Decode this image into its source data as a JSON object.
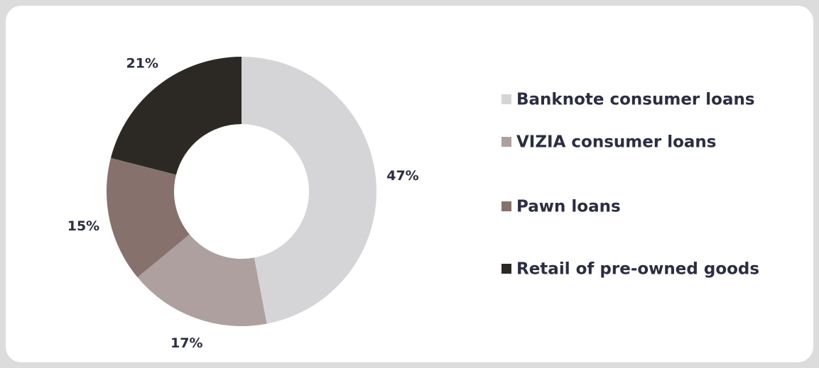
{
  "chart_data": {
    "type": "donut",
    "categories": [
      "Banknote consumer loans",
      "VIZIA consumer loans",
      "Pawn loans",
      "Retail of pre-owned goods"
    ],
    "values": [
      47,
      17,
      15,
      21
    ],
    "value_labels": [
      "47%",
      "17%",
      "15%",
      "21%"
    ],
    "colors": [
      "#d5d4d6",
      "#ada09f",
      "#86716d",
      "#2c2925"
    ]
  }
}
